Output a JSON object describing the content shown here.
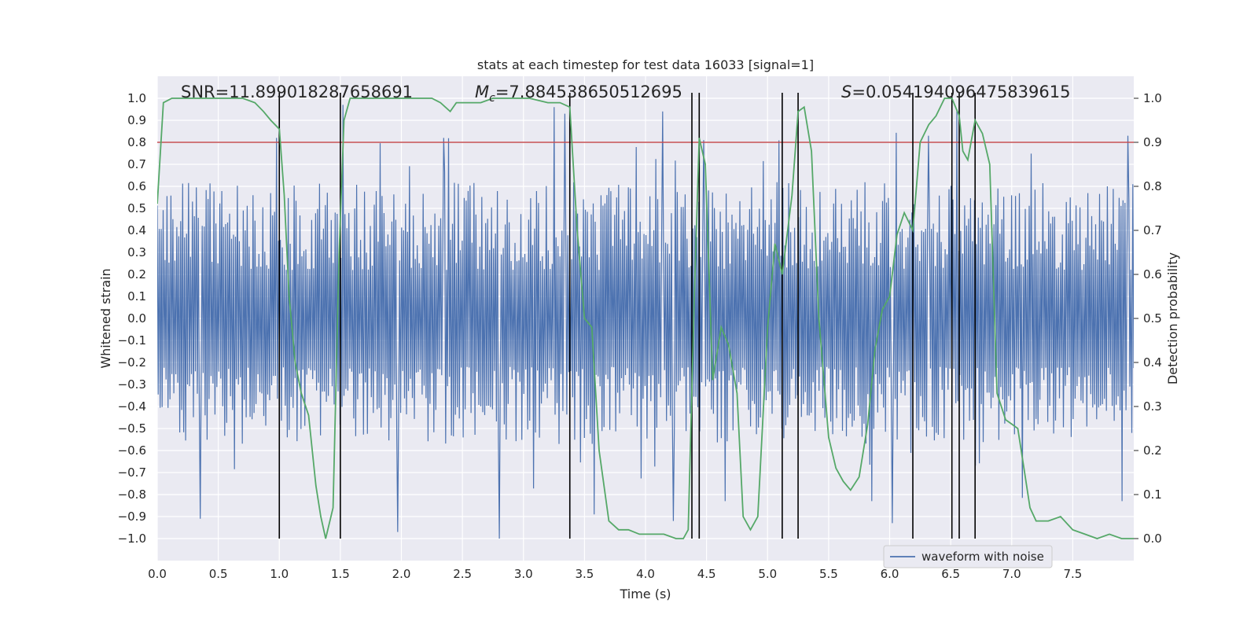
{
  "chart_data": {
    "type": "line",
    "title": "stats at each timestep for test data 16033 [signal=1]",
    "xlabel": "Time (s)",
    "ylabel": "Whitened strain",
    "y2label": "Detection probability",
    "xlim": [
      0.0,
      8.0
    ],
    "ylim": [
      -1.1,
      1.1
    ],
    "y2lim": [
      -0.05,
      1.05
    ],
    "xticks": [
      "0.0",
      "0.5",
      "1.0",
      "1.5",
      "2.0",
      "2.5",
      "3.0",
      "3.5",
      "4.0",
      "4.5",
      "5.0",
      "5.5",
      "6.0",
      "6.5",
      "7.0",
      "7.5"
    ],
    "yticks": [
      "1.0",
      "0.9",
      "0.8",
      "0.7",
      "0.6",
      "0.5",
      "0.4",
      "0.3",
      "0.2",
      "0.1",
      "0.0",
      "−0.1",
      "−0.2",
      "−0.3",
      "−0.4",
      "−0.5",
      "−0.6",
      "−0.7",
      "−0.8",
      "−0.9",
      "−1.0"
    ],
    "y2ticks": [
      "1.0",
      "0.9",
      "0.8",
      "0.7",
      "0.6",
      "0.5",
      "0.4",
      "0.3",
      "0.2",
      "0.1",
      "0.0"
    ],
    "annotations": {
      "snr": "SNR=11.899018287658691",
      "mc_symbol": "M",
      "mc_sub": "c",
      "mc_value": "=7.884538650512695",
      "s_symbol": "S",
      "s_value": "=0.054194096475839615"
    },
    "legend": {
      "label": "waveform with noise",
      "location": "lower right"
    },
    "threshold": {
      "value": 0.9,
      "axis": "right",
      "color": "#c44e52"
    },
    "event_lines": [
      1.0,
      1.5,
      3.38,
      4.38,
      4.44,
      5.12,
      5.25,
      6.19,
      6.51,
      6.57,
      6.7
    ],
    "waveform": {
      "name": "waveform with noise",
      "color": "#4c72b0",
      "seed": 16033,
      "samples": 1000,
      "typical_range": [
        -0.55,
        0.6
      ],
      "peaks": [
        {
          "x": 0.98,
          "y": 0.82
        },
        {
          "x": 1.52,
          "y": 0.97
        },
        {
          "x": 3.25,
          "y": 0.96
        },
        {
          "x": 3.34,
          "y": 0.93
        },
        {
          "x": 4.14,
          "y": 0.94
        },
        {
          "x": 4.48,
          "y": 0.81
        },
        {
          "x": 6.55,
          "y": 0.95
        },
        {
          "x": 6.32,
          "y": 0.83
        },
        {
          "x": 7.95,
          "y": 0.83
        },
        {
          "x": 2.35,
          "y": 0.82
        },
        {
          "x": 0.35,
          "y": -0.91
        },
        {
          "x": 1.97,
          "y": -0.97
        },
        {
          "x": 2.8,
          "y": -1.0
        },
        {
          "x": 3.58,
          "y": -0.89
        },
        {
          "x": 4.23,
          "y": -0.92
        },
        {
          "x": 6.02,
          "y": -0.93
        },
        {
          "x": 5.85,
          "y": -0.83
        },
        {
          "x": 7.9,
          "y": -0.83
        },
        {
          "x": 4.65,
          "y": -0.83
        }
      ]
    },
    "probability": {
      "name": "detection probability",
      "color": "#55a868",
      "x": [
        0.0,
        0.05,
        0.12,
        0.2,
        0.3,
        0.4,
        0.5,
        0.6,
        0.7,
        0.8,
        0.87,
        0.93,
        1.0,
        1.04,
        1.08,
        1.13,
        1.18,
        1.24,
        1.3,
        1.34,
        1.38,
        1.44,
        1.49,
        1.53,
        1.58,
        1.7,
        1.85,
        2.0,
        2.1,
        2.2,
        2.25,
        2.32,
        2.4,
        2.45,
        2.55,
        2.65,
        2.75,
        2.9,
        3.05,
        3.2,
        3.3,
        3.38,
        3.44,
        3.5,
        3.56,
        3.62,
        3.7,
        3.78,
        3.86,
        3.95,
        4.05,
        4.15,
        4.25,
        4.31,
        4.35,
        4.4,
        4.44,
        4.49,
        4.55,
        4.62,
        4.68,
        4.75,
        4.8,
        4.86,
        4.92,
        5.0,
        5.06,
        5.12,
        5.2,
        5.25,
        5.3,
        5.36,
        5.42,
        5.5,
        5.56,
        5.62,
        5.68,
        5.75,
        5.82,
        5.88,
        5.94,
        6.0,
        6.06,
        6.12,
        6.19,
        6.25,
        6.32,
        6.38,
        6.45,
        6.51,
        6.57,
        6.6,
        6.64,
        6.7,
        6.76,
        6.82,
        6.88,
        6.95,
        7.0,
        7.05,
        7.1,
        7.15,
        7.2,
        7.3,
        7.4,
        7.5,
        7.6,
        7.7,
        7.8,
        7.9,
        8.0
      ],
      "y": [
        0.76,
        0.99,
        1.0,
        1.0,
        1.0,
        1.0,
        1.0,
        1.0,
        1.0,
        0.99,
        0.97,
        0.95,
        0.93,
        0.78,
        0.55,
        0.4,
        0.33,
        0.28,
        0.12,
        0.05,
        0.0,
        0.07,
        0.65,
        0.95,
        1.0,
        1.0,
        1.0,
        1.0,
        1.0,
        1.0,
        1.0,
        0.99,
        0.97,
        0.99,
        0.99,
        0.99,
        1.0,
        1.0,
        1.0,
        0.99,
        0.99,
        0.98,
        0.7,
        0.5,
        0.48,
        0.2,
        0.04,
        0.02,
        0.02,
        0.01,
        0.01,
        0.01,
        0.0,
        0.0,
        0.02,
        0.55,
        0.91,
        0.85,
        0.36,
        0.48,
        0.44,
        0.33,
        0.05,
        0.02,
        0.05,
        0.48,
        0.67,
        0.6,
        0.78,
        0.97,
        0.98,
        0.88,
        0.5,
        0.23,
        0.16,
        0.13,
        0.11,
        0.14,
        0.26,
        0.43,
        0.52,
        0.55,
        0.69,
        0.74,
        0.7,
        0.9,
        0.94,
        0.96,
        1.0,
        1.0,
        0.96,
        0.88,
        0.86,
        0.95,
        0.92,
        0.85,
        0.33,
        0.27,
        0.26,
        0.25,
        0.16,
        0.07,
        0.04,
        0.04,
        0.05,
        0.02,
        0.01,
        0.0,
        0.01,
        0.0,
        0.0
      ]
    }
  }
}
